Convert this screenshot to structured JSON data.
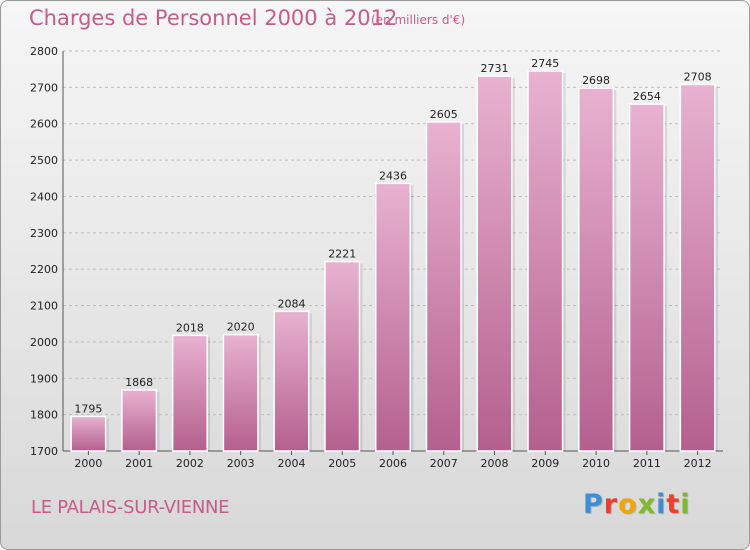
{
  "header": {
    "title": "Charges de Personnel 2000 à 2012",
    "subtitle": "(en milliers d'€)"
  },
  "footer": {
    "city": "LE PALAIS-SUR-VIENNE",
    "logo_text": "Proxiti",
    "logo_colors": [
      "#3a8fd8",
      "#e8412c",
      "#f5a300",
      "#7cbc2a",
      "#3a8fd8",
      "#e8412c",
      "#7cbc2a"
    ]
  },
  "colors": {
    "bar": "#d07aa8",
    "bar_light": "#e8b2d0",
    "bar_dark": "#b4608e",
    "grid": "#bdbdbd",
    "accent": "#c85a8c"
  },
  "chart_data": {
    "type": "bar",
    "title": "Charges de Personnel 2000 à 2012",
    "subtitle": "(en milliers d'€)",
    "xlabel": "",
    "ylabel": "",
    "categories": [
      "2000",
      "2001",
      "2002",
      "2003",
      "2004",
      "2005",
      "2006",
      "2007",
      "2008",
      "2009",
      "2010",
      "2011",
      "2012"
    ],
    "values": [
      1795,
      1868,
      2018,
      2020,
      2084,
      2221,
      2436,
      2605,
      2731,
      2745,
      2698,
      2654,
      2708
    ],
    "ylim": [
      1700,
      2800
    ],
    "yticks": [
      1700,
      1800,
      1900,
      2000,
      2100,
      2200,
      2300,
      2400,
      2500,
      2600,
      2700,
      2800
    ],
    "grid": "dashed horizontal",
    "data_labels": true
  }
}
